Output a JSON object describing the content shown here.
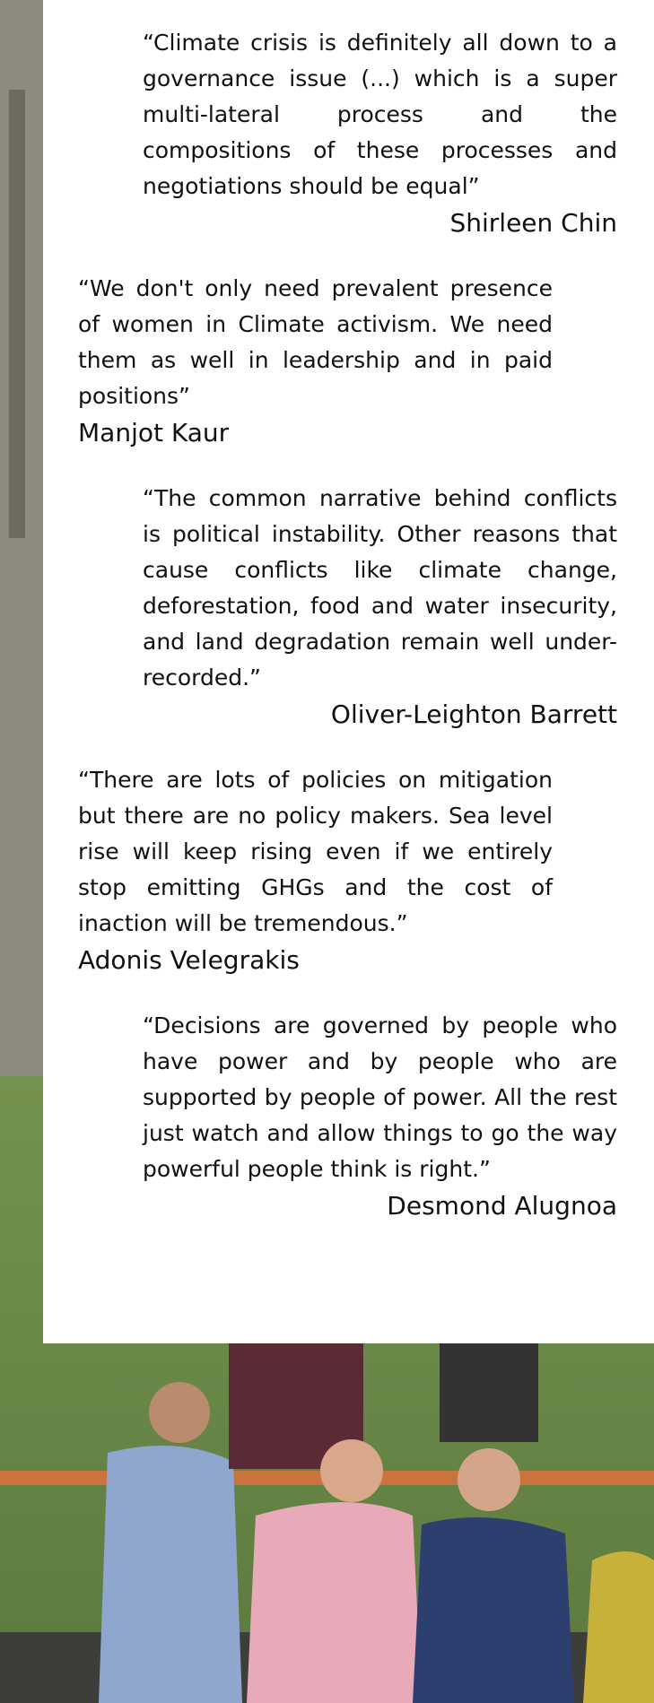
{
  "quotes": [
    {
      "text": "“Climate crisis is definitely all down to a governance issue (...) which is a super multi-lateral process and the compositions of these processes and negotiations should be equal”",
      "author": "Shirleen Chin"
    },
    {
      "text": "“We don't only need prevalent presence of women in Climate activism. We need them as well in leadership and in paid positions”",
      "author": "Manjot Kaur"
    },
    {
      "text": "“The common narrative behind conflicts is political instability. Other reasons that cause conflicts like climate change, deforestation, food and water insecurity, and land degradation remain well under-recorded.”",
      "author": "Oliver-Leighton Barrett"
    },
    {
      "text": "“There are lots of policies on mitigation but there are no policy makers. Sea level rise will keep rising even if we entirely stop emitting GHGs and the cost of inaction will be tremendous.”",
      "author": "Adonis Velegrakis"
    },
    {
      "text": "“Decisions are governed by people who have power and by people who are supported by people of power. All the rest just watch and allow things to go the way powerful people think is right.”",
      "author": "Desmond Alugnoa"
    }
  ]
}
